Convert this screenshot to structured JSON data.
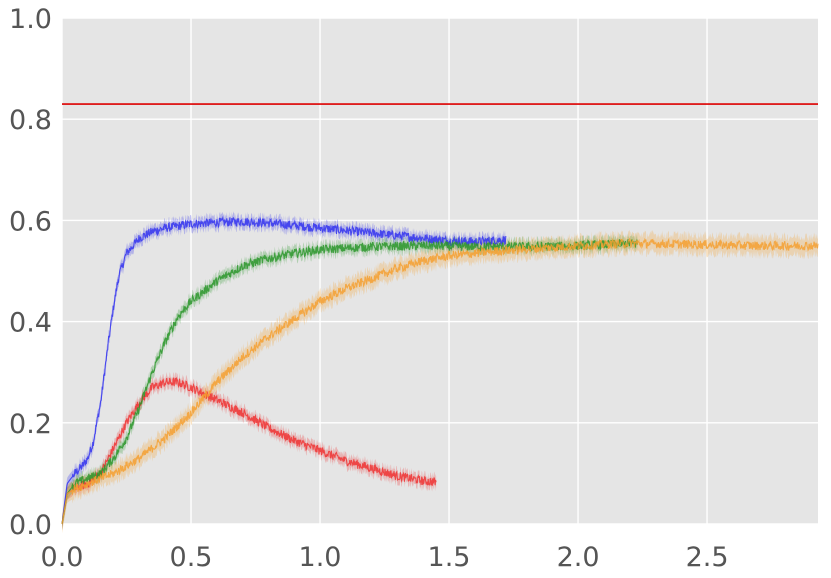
{
  "chart_data": {
    "type": "line",
    "title": "",
    "xlabel": "",
    "ylabel": "",
    "xlim": [
      0,
      2.93
    ],
    "ylim": [
      0,
      1.0
    ],
    "grid": true,
    "x_ticks": [
      {
        "value": 0.0,
        "label": "0.0"
      },
      {
        "value": 0.5,
        "label": "0.5"
      },
      {
        "value": 1.0,
        "label": "1.0"
      },
      {
        "value": 1.5,
        "label": "1.5"
      },
      {
        "value": 2.0,
        "label": "2.0"
      },
      {
        "value": 2.5,
        "label": "2.5"
      }
    ],
    "y_ticks": [
      {
        "value": 0.0,
        "label": "0.0"
      },
      {
        "value": 0.2,
        "label": "0.2"
      },
      {
        "value": 0.4,
        "label": "0.4"
      },
      {
        "value": 0.6,
        "label": "0.6"
      },
      {
        "value": 0.8,
        "label": "0.8"
      },
      {
        "value": 1.0,
        "label": "1.0"
      }
    ],
    "reference_line": {
      "y": 0.83,
      "color": "#dd0000"
    },
    "series": [
      {
        "color": "#3333ee",
        "band": 0.012,
        "points": [
          [
            0,
            0
          ],
          [
            0.02,
            0.08
          ],
          [
            0.05,
            0.1
          ],
          [
            0.08,
            0.115
          ],
          [
            0.1,
            0.13
          ],
          [
            0.12,
            0.16
          ],
          [
            0.15,
            0.24
          ],
          [
            0.18,
            0.36
          ],
          [
            0.2,
            0.43
          ],
          [
            0.22,
            0.49
          ],
          [
            0.25,
            0.535
          ],
          [
            0.3,
            0.565
          ],
          [
            0.35,
            0.578
          ],
          [
            0.4,
            0.585
          ],
          [
            0.5,
            0.593
          ],
          [
            0.6,
            0.596
          ],
          [
            0.7,
            0.598
          ],
          [
            0.8,
            0.595
          ],
          [
            0.9,
            0.59
          ],
          [
            1.0,
            0.585
          ],
          [
            1.1,
            0.58
          ],
          [
            1.2,
            0.575
          ],
          [
            1.3,
            0.57
          ],
          [
            1.4,
            0.565
          ],
          [
            1.5,
            0.56
          ],
          [
            1.6,
            0.558
          ],
          [
            1.72,
            0.562
          ]
        ]
      },
      {
        "color": "#ee3333",
        "band": 0.012,
        "points": [
          [
            0,
            0
          ],
          [
            0.02,
            0.06
          ],
          [
            0.05,
            0.07
          ],
          [
            0.1,
            0.08
          ],
          [
            0.15,
            0.1
          ],
          [
            0.2,
            0.15
          ],
          [
            0.25,
            0.2
          ],
          [
            0.3,
            0.24
          ],
          [
            0.35,
            0.27
          ],
          [
            0.4,
            0.28
          ],
          [
            0.45,
            0.28
          ],
          [
            0.5,
            0.27
          ],
          [
            0.6,
            0.245
          ],
          [
            0.7,
            0.22
          ],
          [
            0.8,
            0.19
          ],
          [
            0.9,
            0.165
          ],
          [
            1.0,
            0.145
          ],
          [
            1.1,
            0.125
          ],
          [
            1.2,
            0.11
          ],
          [
            1.3,
            0.095
          ],
          [
            1.4,
            0.085
          ],
          [
            1.45,
            0.083
          ]
        ]
      },
      {
        "color": "#2b962b",
        "band": 0.012,
        "points": [
          [
            0,
            0
          ],
          [
            0.02,
            0.06
          ],
          [
            0.05,
            0.08
          ],
          [
            0.1,
            0.09
          ],
          [
            0.15,
            0.1
          ],
          [
            0.2,
            0.13
          ],
          [
            0.25,
            0.17
          ],
          [
            0.3,
            0.23
          ],
          [
            0.35,
            0.3
          ],
          [
            0.4,
            0.36
          ],
          [
            0.45,
            0.41
          ],
          [
            0.5,
            0.44
          ],
          [
            0.6,
            0.48
          ],
          [
            0.7,
            0.51
          ],
          [
            0.8,
            0.525
          ],
          [
            0.9,
            0.535
          ],
          [
            1.0,
            0.542
          ],
          [
            1.2,
            0.548
          ],
          [
            1.4,
            0.55
          ],
          [
            1.6,
            0.548
          ],
          [
            1.8,
            0.548
          ],
          [
            2.0,
            0.55
          ],
          [
            2.23,
            0.555
          ]
        ]
      },
      {
        "color": "#f5a030",
        "band": 0.018,
        "points": [
          [
            0,
            0
          ],
          [
            0.02,
            0.06
          ],
          [
            0.05,
            0.07
          ],
          [
            0.1,
            0.08
          ],
          [
            0.2,
            0.1
          ],
          [
            0.3,
            0.13
          ],
          [
            0.4,
            0.17
          ],
          [
            0.5,
            0.22
          ],
          [
            0.6,
            0.28
          ],
          [
            0.7,
            0.33
          ],
          [
            0.8,
            0.37
          ],
          [
            0.9,
            0.405
          ],
          [
            1.0,
            0.44
          ],
          [
            1.1,
            0.465
          ],
          [
            1.2,
            0.485
          ],
          [
            1.3,
            0.505
          ],
          [
            1.4,
            0.52
          ],
          [
            1.5,
            0.53
          ],
          [
            1.7,
            0.54
          ],
          [
            2.0,
            0.55
          ],
          [
            2.2,
            0.555
          ],
          [
            2.5,
            0.552
          ],
          [
            2.7,
            0.55
          ],
          [
            2.93,
            0.55
          ]
        ]
      }
    ]
  }
}
